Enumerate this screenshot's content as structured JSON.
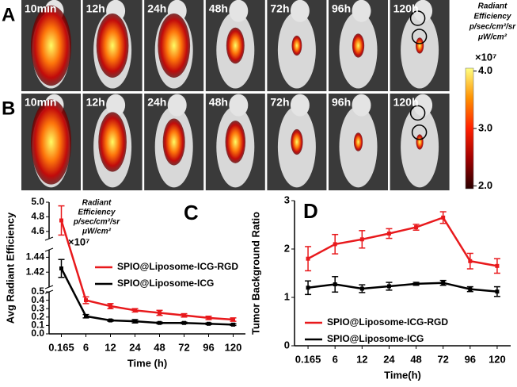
{
  "imaging": {
    "rows": [
      {
        "label": "A",
        "times": [
          "10min",
          "12h",
          "24h",
          "48h",
          "72h",
          "96h",
          "120h"
        ]
      },
      {
        "label": "B",
        "times": [
          "10min",
          "12h",
          "24h",
          "48h",
          "72h",
          "96h",
          "120h"
        ]
      }
    ],
    "colorbar": {
      "title": [
        "Radiant",
        "Efficiency",
        "p/sec/cm²/sr",
        "μW/cm²"
      ],
      "multiplier": "×10⁷",
      "lim": [
        1.95,
        4.05
      ],
      "ticks": [
        {
          "value": 4,
          "label": "4.0"
        },
        {
          "value": 3,
          "label": "3.0"
        },
        {
          "value": 2,
          "label": "2.0"
        }
      ],
      "colors": [
        "#2a0000",
        "#a00000",
        "#ff2000",
        "#ff9000",
        "#ffff80"
      ]
    }
  },
  "chart_data": [
    {
      "type": "line",
      "panel_label": "C",
      "xlabel": "Time (h)",
      "ylabel": "Avg Radiant Efficiency",
      "categories": [
        "0.165",
        "6",
        "12",
        "24",
        "48",
        "72",
        "96",
        "120"
      ],
      "y_segments": [
        {
          "ylim": [
            0,
            0.5
          ],
          "yticks": [
            {
              "value": 0,
              "label": "0.0"
            },
            0.1,
            0.2,
            0.3,
            0.4,
            0.5
          ]
        },
        {
          "ylim": [
            1.4,
            1.45
          ],
          "yticks": [
            1.42,
            1.44
          ]
        },
        {
          "ylim": [
            4.5,
            5.0
          ],
          "yticks": [
            4.6,
            4.8,
            {
              "value": 5,
              "label": "5.0"
            }
          ]
        }
      ],
      "annotation": {
        "lines": [
          "Radiant",
          "Efficiency",
          "p/sec/cm²/sr",
          "μW/cm²"
        ],
        "multiplier": "×10⁷"
      },
      "legend": "upper right",
      "series": [
        {
          "name": "SPIO@Liposome-ICG-RGD",
          "color": "#e8191c",
          "values": [
            4.75,
            0.4,
            0.33,
            0.28,
            0.25,
            0.22,
            0.19,
            0.17
          ],
          "errors": [
            0.2,
            0.04,
            0.03,
            0.02,
            0.03,
            0.02,
            0.02,
            0.02
          ]
        },
        {
          "name": "SPIO@Liposome-ICG",
          "color": "#000000",
          "values": [
            1.425,
            0.21,
            0.16,
            0.15,
            0.13,
            0.13,
            0.12,
            0.11
          ],
          "errors": [
            0.012,
            0.02,
            0.01,
            0.02,
            0.01,
            0.01,
            0.01,
            0.01
          ]
        }
      ]
    },
    {
      "type": "line",
      "panel_label": "D",
      "xlabel": "Time(h)",
      "ylabel": "Tumor Background Ratio",
      "categories": [
        "0.165",
        "6",
        "12",
        "24",
        "48",
        "72",
        "96",
        "120"
      ],
      "ylim": [
        0,
        3
      ],
      "yticks": [
        0,
        1,
        2,
        3
      ],
      "legend": "lower right",
      "series": [
        {
          "name": "SPIO@Liposome-ICG-RGD",
          "color": "#e8191c",
          "values": [
            1.8,
            2.1,
            2.2,
            2.32,
            2.45,
            2.65,
            1.75,
            1.65
          ],
          "errors": [
            0.25,
            0.2,
            0.18,
            0.1,
            0.06,
            0.12,
            0.16,
            0.15
          ]
        },
        {
          "name": "SPIO@Liposome-ICG",
          "color": "#000000",
          "values": [
            1.2,
            1.27,
            1.18,
            1.23,
            1.28,
            1.3,
            1.17,
            1.12
          ],
          "errors": [
            0.14,
            0.16,
            0.08,
            0.08,
            0.03,
            0.05,
            0.05,
            0.1
          ]
        }
      ]
    }
  ]
}
